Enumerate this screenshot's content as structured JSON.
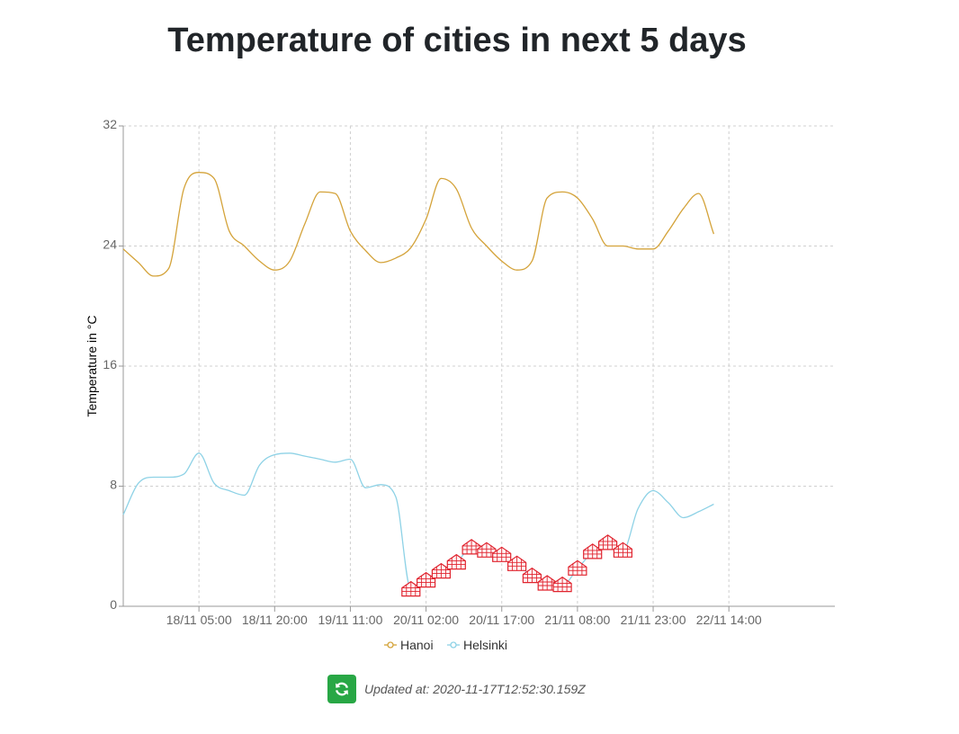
{
  "page": {
    "title": "Temperature of cities in next 5 days",
    "updated_label": "Updated at: 2020-11-17T12:52:30.159Z",
    "refresh_icon": "refresh-icon",
    "refresh_button_color": "#28a745"
  },
  "chart_data": {
    "type": "line",
    "title": "",
    "xlabel": "",
    "ylabel": "Temperature in °C",
    "ylim": [
      0,
      32
    ],
    "yticks": [
      "0",
      "8",
      "16",
      "24",
      "32"
    ],
    "x_start": "17/11 14:00",
    "x_step_hours": 3,
    "xlim": [
      0,
      47
    ],
    "x_tick_labels": [
      {
        "index": 5,
        "label": "18/11 05:00"
      },
      {
        "index": 10,
        "label": "18/11 20:00"
      },
      {
        "index": 15,
        "label": "19/11 11:00"
      },
      {
        "index": 20,
        "label": "20/11 02:00"
      },
      {
        "index": 25,
        "label": "20/11 17:00"
      },
      {
        "index": 30,
        "label": "21/11 08:00"
      },
      {
        "index": 35,
        "label": "21/11 23:00"
      },
      {
        "index": 40,
        "label": "22/11 14:00"
      }
    ],
    "grid": true,
    "legend_position": "bottom",
    "series": [
      {
        "name": "Hanoi",
        "color": "#d4a33a",
        "values": [
          23.8,
          22.9,
          22.0,
          22.5,
          27.8,
          28.9,
          28.5,
          25.0,
          24.0,
          23.0,
          22.4,
          23.0,
          25.5,
          27.6,
          27.5,
          25.0,
          23.7,
          22.9,
          23.2,
          23.9,
          25.8,
          28.5,
          27.8,
          25.2,
          24.0,
          23.0,
          22.4,
          23.0,
          27.2,
          27.6,
          27.2,
          25.8,
          24.0,
          24.0,
          23.8,
          23.8,
          25.0,
          26.5,
          27.5,
          24.8
        ]
      },
      {
        "name": "Helsinki",
        "color": "#8ed2e6",
        "values": [
          6.1,
          8.2,
          8.6,
          8.6,
          8.8,
          10.2,
          8.2,
          7.7,
          7.4,
          9.4,
          10.1,
          10.2,
          10.0,
          9.8,
          9.6,
          9.8,
          7.9,
          8.1,
          7.3,
          1.1,
          1.7,
          2.3,
          2.9,
          3.9,
          3.7,
          3.4,
          2.8,
          2.0,
          1.5,
          1.4,
          2.5,
          3.6,
          4.2,
          3.7,
          6.5,
          7.7,
          6.9,
          5.9,
          6.3,
          6.8
        ],
        "snow_point_indices": [
          19,
          20,
          21,
          22,
          23,
          24,
          25,
          26,
          27,
          28,
          29,
          30,
          31,
          32,
          33
        ]
      }
    ],
    "snow_marker_color": "#e0242f",
    "snow_marker_icon": "snowflake-icon",
    "gridline_color": "#d0d0d0"
  }
}
